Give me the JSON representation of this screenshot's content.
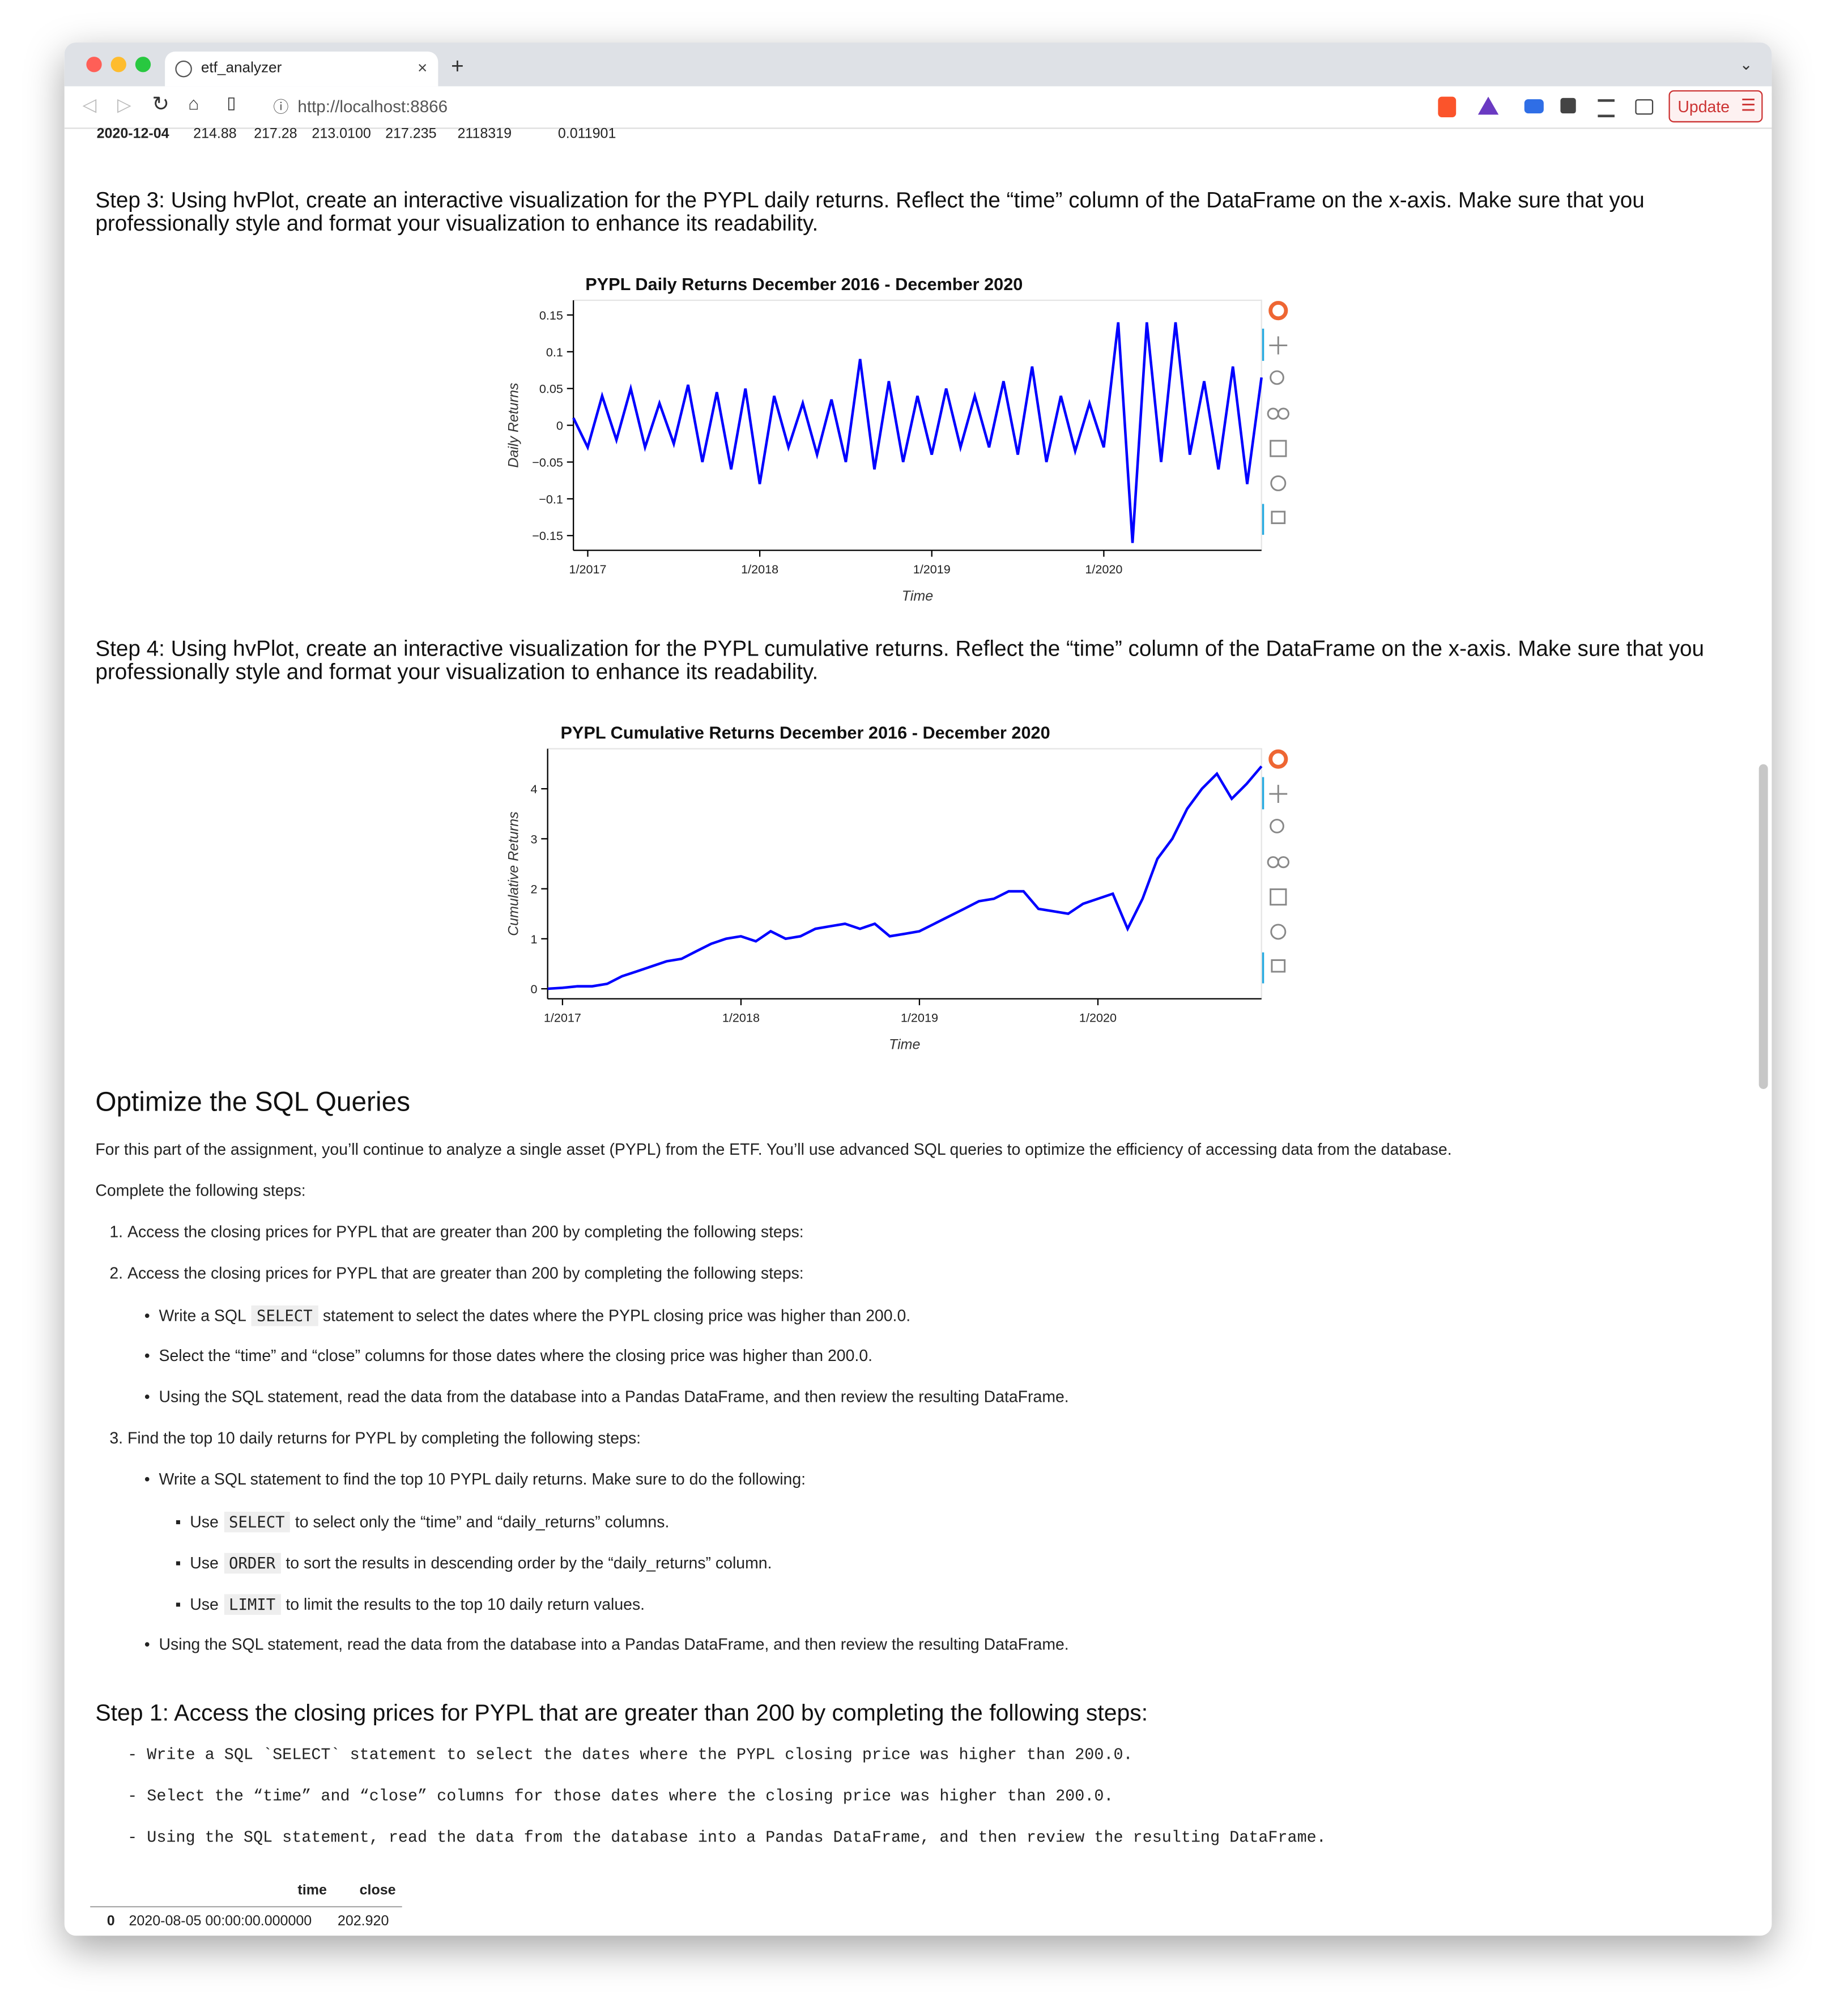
{
  "browser": {
    "tab_title": "etf_analyzer",
    "url": "http://localhost:8866",
    "update_button": "Update"
  },
  "top_row": [
    "2020-12-04",
    "214.88",
    "217.28",
    "213.0100",
    "217.235",
    "2118319",
    "0.011901"
  ],
  "step3": "Step 3: Using hvPlot, create an interactive visualization for the PYPL daily returns. Reflect the “time” column of the DataFrame on the x-axis. Make sure that you professionally style and format your visualization to enhance its readability.",
  "step4": "Step 4: Using hvPlot, create an interactive visualization for the PYPL cumulative returns. Reflect the “time” column of the DataFrame on the x-axis. Make sure that you professionally style and format your visualization to enhance its readability.",
  "chart_data": [
    {
      "type": "line",
      "title": "PYPL Daily Returns December 2016 - December 2020",
      "x_label": "Time",
      "y_label": "Daily Returns",
      "color": "#0000ff",
      "x": [
        "2016-12",
        "2017-01",
        "2017-02",
        "2017-03",
        "2017-04",
        "2017-05",
        "2017-06",
        "2017-07",
        "2017-08",
        "2017-09",
        "2017-10",
        "2017-11",
        "2017-12",
        "2018-01",
        "2018-02",
        "2018-03",
        "2018-04",
        "2018-05",
        "2018-06",
        "2018-07",
        "2018-08",
        "2018-09",
        "2018-10",
        "2018-11",
        "2018-12",
        "2019-01",
        "2019-02",
        "2019-03",
        "2019-04",
        "2019-05",
        "2019-06",
        "2019-07",
        "2019-08",
        "2019-09",
        "2019-10",
        "2019-11",
        "2019-12",
        "2020-01",
        "2020-02",
        "2020-03",
        "2020-04",
        "2020-05",
        "2020-06",
        "2020-07",
        "2020-08",
        "2020-09",
        "2020-10",
        "2020-11",
        "2020-12"
      ],
      "values": [
        0.01,
        -0.03,
        0.04,
        -0.02,
        0.05,
        -0.03,
        0.03,
        -0.025,
        0.055,
        -0.05,
        0.045,
        -0.06,
        0.05,
        -0.08,
        0.04,
        -0.03,
        0.03,
        -0.04,
        0.035,
        -0.05,
        0.09,
        -0.06,
        0.06,
        -0.05,
        0.04,
        -0.04,
        0.05,
        -0.03,
        0.04,
        -0.03,
        0.06,
        -0.04,
        0.08,
        -0.05,
        0.04,
        -0.035,
        0.03,
        -0.03,
        0.14,
        -0.16,
        0.14,
        -0.05,
        0.14,
        -0.04,
        0.06,
        -0.06,
        0.08,
        -0.08,
        0.065
      ],
      "xlim": [
        "2016-12",
        "2020-12"
      ],
      "xticks": [
        {
          "value": "2017-01",
          "label": "1/2017"
        },
        {
          "value": "2018-01",
          "label": "1/2018"
        },
        {
          "value": "2019-01",
          "label": "1/2019"
        },
        {
          "value": "2020-01",
          "label": "1/2020"
        }
      ],
      "ylim": [
        -0.17,
        0.17
      ],
      "yticks": [
        {
          "value": -0.15,
          "label": "−0.15"
        },
        {
          "value": -0.1,
          "label": "−0.1"
        },
        {
          "value": -0.05,
          "label": "−0.05"
        },
        0,
        0.05,
        0.1,
        0.15
      ]
    },
    {
      "type": "line",
      "title": "PYPL Cumulative Returns December 2016 - December 2020",
      "x_label": "Time",
      "y_label": "Cumulative Returns",
      "color": "#0000ff",
      "x": [
        "2016-12",
        "2017-01",
        "2017-02",
        "2017-03",
        "2017-04",
        "2017-05",
        "2017-06",
        "2017-07",
        "2017-08",
        "2017-09",
        "2017-10",
        "2017-11",
        "2017-12",
        "2018-01",
        "2018-02",
        "2018-03",
        "2018-04",
        "2018-05",
        "2018-06",
        "2018-07",
        "2018-08",
        "2018-09",
        "2018-10",
        "2018-11",
        "2018-12",
        "2019-01",
        "2019-02",
        "2019-03",
        "2019-04",
        "2019-05",
        "2019-06",
        "2019-07",
        "2019-08",
        "2019-09",
        "2019-10",
        "2019-11",
        "2019-12",
        "2020-01",
        "2020-02",
        "2020-03",
        "2020-04",
        "2020-05",
        "2020-06",
        "2020-07",
        "2020-08",
        "2020-09",
        "2020-10",
        "2020-11",
        "2020-12"
      ],
      "values": [
        0,
        0.02,
        0.05,
        0.05,
        0.1,
        0.25,
        0.35,
        0.45,
        0.55,
        0.6,
        0.75,
        0.9,
        1.0,
        1.05,
        0.95,
        1.15,
        1.0,
        1.05,
        1.2,
        1.25,
        1.3,
        1.2,
        1.3,
        1.05,
        1.1,
        1.15,
        1.3,
        1.45,
        1.6,
        1.75,
        1.8,
        1.95,
        1.95,
        1.6,
        1.55,
        1.5,
        1.7,
        1.8,
        1.9,
        1.2,
        1.8,
        2.6,
        3.0,
        3.6,
        4.0,
        4.3,
        3.8,
        4.1,
        4.45
      ],
      "xlim": [
        "2016-12",
        "2020-12"
      ],
      "xticks": [
        {
          "value": "2017-01",
          "label": "1/2017"
        },
        {
          "value": "2018-01",
          "label": "1/2018"
        },
        {
          "value": "2019-01",
          "label": "1/2019"
        },
        {
          "value": "2020-01",
          "label": "1/2020"
        }
      ],
      "ylim": [
        -0.2,
        4.8
      ],
      "yticks": [
        0,
        1,
        2,
        3,
        4
      ]
    }
  ],
  "section_title": "Optimize the SQL Queries",
  "intro": "For this part of the assignment, you’ll continue to analyze a single asset (PYPL) from the ETF. You’ll use advanced SQL queries to optimize the efficiency of accessing data from the database.",
  "complete": "Complete the following steps:",
  "items": [
    {
      "num": "1.",
      "text": "Access the closing prices for PYPL that are greater than 200 by completing the following steps:"
    },
    {
      "num": "2.",
      "text": "Access the closing prices for PYPL that are greater than 200 by completing the following steps:"
    },
    {
      "before": "Write a SQL",
      "code": "SELECT",
      "after": "statement to select the dates where the PYPL closing price was higher than 200.0."
    },
    {
      "text": "Select the “time” and “close” columns for those dates where the closing price was higher than 200.0."
    },
    {
      "text": "Using the SQL statement, read the data from the database into a Pandas DataFrame, and then review the resulting DataFrame."
    },
    {
      "num": "3.",
      "text": "Find the top 10 daily returns for PYPL by completing the following steps:"
    },
    {
      "text": "Write a SQL statement to find the top 10 PYPL daily returns. Make sure to do the following:"
    },
    {
      "before": "Use",
      "code": "SELECT",
      "after": "to select only the “time” and “daily_returns” columns."
    },
    {
      "before": "Use",
      "code": "ORDER",
      "after": "to sort the results in descending order by the “daily_returns” column."
    },
    {
      "before": "Use",
      "code": "LIMIT",
      "after": "to limit the results to the top 10 daily return values."
    },
    {
      "text": "Using the SQL statement, read the data from the database into a Pandas DataFrame, and then review the resulting DataFrame."
    }
  ],
  "step1": "Step 1: Access the closing prices for PYPL that are greater than 200 by completing the following steps:",
  "mono_lines": [
    "- Write a SQL `SELECT` statement to select the dates where the PYPL closing price was higher than 200.0.",
    "- Select the “time” and “close” columns for those dates where the closing price was higher than 200.0.",
    "- Using the SQL statement, read the data from the database into a Pandas DataFrame, and then review the resulting DataFrame."
  ],
  "table": {
    "header": [
      "time",
      "close"
    ],
    "rows": [
      [
        "0",
        "2020-08-05 00:00:00.000000",
        "202.920"
      ]
    ]
  }
}
